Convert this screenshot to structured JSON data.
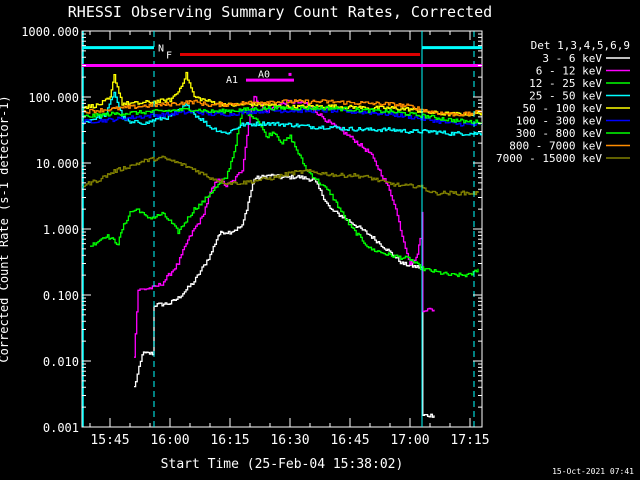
{
  "colors": {
    "background": "#000000",
    "axis": "#ffffff",
    "attenuator": "#ff00ff",
    "flare": "#dd0000",
    "night": "#00ffff"
  },
  "chart_data": {
    "type": "line",
    "title": "RHESSI Observing Summary Count Rates, Corrected",
    "xlabel": "Start Time (25-Feb-04 15:38:02)",
    "ylabel": "Corrected Count Rate (s-1 detector-1)",
    "ylog": true,
    "ylim": [
      0.001,
      1000
    ],
    "xlim_minutes": [
      38,
      138
    ],
    "x_unit": "minutes after 15:00 UT",
    "y_tick_labels": [
      "1000.000",
      "100.000",
      "10.000",
      "1.000",
      "0.100",
      "0.010",
      "0.001"
    ],
    "x_tick_labels": [
      "15:45",
      "16:00",
      "16:15",
      "16:30",
      "16:45",
      "17:00",
      "17:15"
    ],
    "legend_title": "Det 1,3,4,5,6,9",
    "legend_position": "top-right",
    "series": [
      {
        "name": "3 - 6 keV",
        "color": "#ffffff",
        "x": [
          51,
          53,
          53,
          56,
          56,
          60,
          62,
          66,
          70,
          72,
          73,
          75,
          78,
          81,
          85,
          88,
          92,
          96,
          100,
          105,
          110,
          114,
          118,
          121,
          123,
          123.2,
          126
        ],
        "y": [
          0.004,
          0.012,
          0.013,
          0.013,
          0.07,
          0.075,
          0.09,
          0.16,
          0.4,
          0.8,
          0.9,
          0.9,
          1.1,
          5.8,
          6.5,
          6.0,
          6.2,
          5.5,
          2.0,
          1.3,
          0.8,
          0.5,
          0.3,
          0.27,
          0.26,
          0.0015,
          0.0015
        ]
      },
      {
        "name": "6 - 12 keV",
        "color": "#ff00ff",
        "x": [
          51,
          52,
          52.5,
          56,
          58,
          62,
          64,
          66,
          68,
          70,
          72,
          74,
          76,
          78,
          80,
          81,
          82,
          84,
          86,
          88,
          90,
          94,
          100,
          105,
          110,
          114,
          116,
          118,
          120,
          121.5,
          122.5,
          123,
          123.2,
          124,
          126
        ],
        "y": [
          0.012,
          0.12,
          0.12,
          0.13,
          0.15,
          0.3,
          0.6,
          1.0,
          1.5,
          3.5,
          6.0,
          4.5,
          5.5,
          8.0,
          60,
          100,
          85,
          60,
          70,
          80,
          85,
          80,
          40,
          25,
          14,
          5,
          2.5,
          0.8,
          0.3,
          0.35,
          0.7,
          1.8,
          0.06,
          0.06,
          0.06
        ]
      },
      {
        "name": "12 - 25 keV",
        "color": "#00ff00",
        "x": [
          40,
          44,
          47,
          48,
          50,
          52,
          54,
          56,
          58,
          60,
          62,
          66,
          68,
          70,
          74,
          76,
          78,
          80,
          82,
          84,
          86,
          88,
          90,
          94,
          100,
          105,
          110,
          115,
          120,
          123,
          130,
          135,
          137
        ],
        "y": [
          0.55,
          0.8,
          0.6,
          1.0,
          1.8,
          2.0,
          1.5,
          1.5,
          1.7,
          1.3,
          0.9,
          2.0,
          2.5,
          3.5,
          6.0,
          15,
          60,
          55,
          45,
          25,
          30,
          20,
          25,
          8,
          3.5,
          1.1,
          0.5,
          0.4,
          0.35,
          0.25,
          0.2,
          0.2,
          0.25
        ]
      },
      {
        "name": "25 - 50 keV",
        "color": "#00ffff",
        "x": [
          38,
          40,
          44,
          46,
          48,
          50,
          52,
          54,
          56,
          60,
          64,
          66,
          68,
          70,
          74,
          78,
          84,
          90,
          96,
          100,
          104,
          110,
          115,
          120,
          122,
          125,
          130,
          135,
          138
        ],
        "y": [
          40,
          45,
          55,
          120,
          50,
          40,
          42,
          40,
          45,
          50,
          75,
          55,
          45,
          35,
          28,
          38,
          40,
          38,
          35,
          35,
          33,
          32,
          32,
          30,
          30,
          30,
          28,
          28,
          28
        ]
      },
      {
        "name": "50 - 100 keV",
        "color": "#ffff00",
        "x": [
          38,
          42,
          45,
          46,
          48,
          52,
          56,
          60,
          62,
          64,
          66,
          70,
          75,
          80,
          85,
          90,
          95,
          100,
          105,
          110,
          115,
          120,
          125,
          130,
          135,
          138
        ],
        "y": [
          70,
          75,
          95,
          210,
          80,
          80,
          85,
          90,
          120,
          220,
          100,
          85,
          75,
          78,
          75,
          70,
          72,
          72,
          70,
          68,
          68,
          65,
          58,
          55,
          55,
          58
        ]
      },
      {
        "name": "100 - 300 keV",
        "color": "#0000ff",
        "x": [
          38,
          45,
          52,
          60,
          66,
          70,
          75,
          80,
          85,
          90,
          95,
          100,
          105,
          110,
          115,
          120,
          125,
          130,
          135,
          138
        ],
        "y": [
          42,
          45,
          50,
          55,
          60,
          55,
          55,
          60,
          62,
          62,
          62,
          62,
          60,
          58,
          55,
          50,
          45,
          40,
          38,
          38
        ]
      },
      {
        "name": "300 - 800 keV",
        "color": "#00ff00",
        "x": [
          38,
          45,
          52,
          60,
          66,
          70,
          75,
          80,
          85,
          90,
          95,
          100,
          105,
          110,
          115,
          120,
          125,
          130,
          135,
          138
        ],
        "y": [
          50,
          55,
          58,
          62,
          65,
          60,
          62,
          65,
          68,
          68,
          68,
          68,
          65,
          62,
          60,
          55,
          50,
          45,
          42,
          42
        ]
      },
      {
        "name": "800 - 7000 keV",
        "color": "#ff8c00",
        "x": [
          38,
          45,
          52,
          60,
          66,
          70,
          75,
          80,
          85,
          90,
          95,
          100,
          105,
          110,
          115,
          120,
          125,
          130,
          135,
          138
        ],
        "y": [
          60,
          65,
          72,
          78,
          85,
          75,
          78,
          82,
          85,
          85,
          85,
          85,
          82,
          80,
          78,
          72,
          60,
          55,
          55,
          62
        ]
      },
      {
        "name": "7000 - 15000 keV",
        "color": "#808000",
        "x": [
          38,
          42,
          46,
          50,
          54,
          58,
          62,
          66,
          70,
          74,
          78,
          82,
          86,
          90,
          94,
          98,
          102,
          106,
          110,
          114,
          118,
          122,
          126,
          130,
          134,
          137
        ],
        "y": [
          4.5,
          5.5,
          7.5,
          9.0,
          11,
          12,
          10,
          8.0,
          6.0,
          5.0,
          5.0,
          5.5,
          6.0,
          7.0,
          7.5,
          7.0,
          6.5,
          6.5,
          6.0,
          5.0,
          4.5,
          4.5,
          3.5,
          3.5,
          3.5,
          3.5
        ]
      }
    ],
    "markers": {
      "night": [
        {
          "x1": 38,
          "x2": 56,
          "y": 560,
          "label": "N",
          "label_x": 57
        },
        {
          "x1": 123,
          "x2": 138,
          "y": 560,
          "label": "",
          "label_x": 0
        }
      ],
      "flare": {
        "x1": 62.5,
        "x2": 122.5,
        "y": 440,
        "label": "F",
        "label_x": 59
      },
      "attenuator_bar": {
        "x1": 38,
        "x2": 138,
        "y": 300
      },
      "attenuator_states": [
        {
          "label": "A0",
          "label_x": 82,
          "y": 220,
          "dots": [
            90
          ]
        },
        {
          "label": "A1",
          "label_x": 74,
          "y": 180,
          "segment": [
            79,
            91
          ]
        }
      ],
      "night_vlines": [
        56,
        123,
        136
      ],
      "axis_vlines": [
        38
      ]
    },
    "timestamp": "15-Oct-2021 07:41"
  }
}
